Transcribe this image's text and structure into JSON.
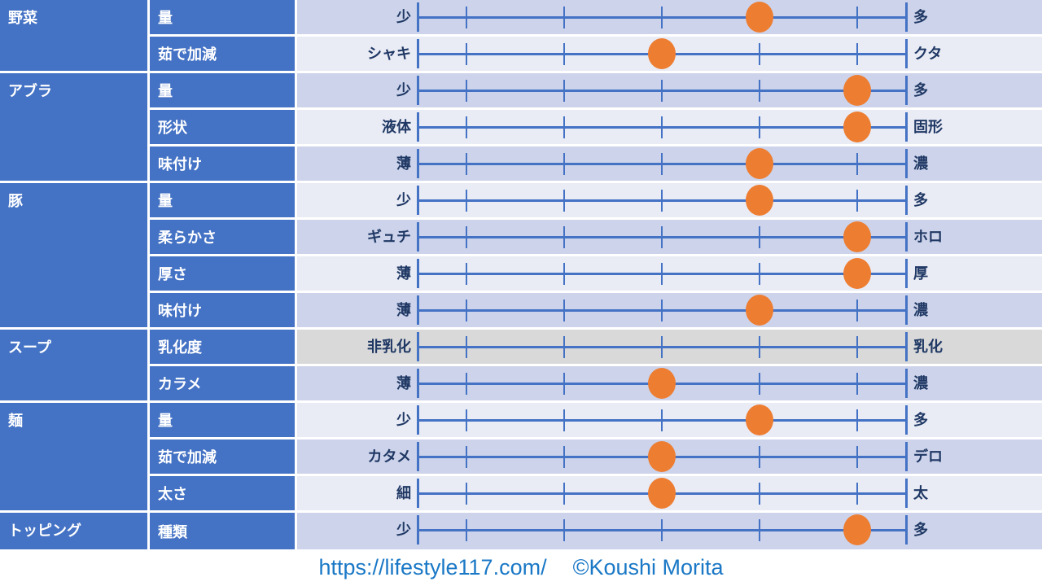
{
  "colors": {
    "header_blue": "#4472C4",
    "label_navy": "#1F3864",
    "row_dark": "#CCD3EA",
    "row_light": "#E9EBF5",
    "row_gray": "#D9D9D9",
    "dot_orange": "#ED7D31",
    "footer_blue": "#1A78C6",
    "separator": "#FFFFFF"
  },
  "footer": {
    "url": "https://lifestyle117.com/",
    "credit": "©Koushi Morita"
  },
  "chart_data": {
    "type": "table",
    "description": "Ramen customization rating chart: each attribute is scored on a 5-tick slider between two extremes; orange dot marks the rating. The 乳化度 row has no dot.",
    "scale_positions": 5,
    "legend_position": "none",
    "grid": "ticks-on-line",
    "groups": [
      {
        "category": "野菜",
        "rows": [
          {
            "attribute": "量",
            "left_label": "少",
            "right_label": "多",
            "value": 4
          },
          {
            "attribute": "茹で加減",
            "left_label": "シャキ",
            "right_label": "クタ",
            "value": 3
          }
        ]
      },
      {
        "category": "アブラ",
        "rows": [
          {
            "attribute": "量",
            "left_label": "少",
            "right_label": "多",
            "value": 5
          },
          {
            "attribute": "形状",
            "left_label": "液体",
            "right_label": "固形",
            "value": 5
          },
          {
            "attribute": "味付け",
            "left_label": "薄",
            "right_label": "濃",
            "value": 4
          }
        ]
      },
      {
        "category": "豚",
        "rows": [
          {
            "attribute": "量",
            "left_label": "少",
            "right_label": "多",
            "value": 4
          },
          {
            "attribute": "柔らかさ",
            "left_label": "ギュチ",
            "right_label": "ホロ",
            "value": 5
          },
          {
            "attribute": "厚さ",
            "left_label": "薄",
            "right_label": "厚",
            "value": 5
          },
          {
            "attribute": "味付け",
            "left_label": "薄",
            "right_label": "濃",
            "value": 4
          }
        ]
      },
      {
        "category": "スープ",
        "rows": [
          {
            "attribute": "乳化度",
            "left_label": "非乳化",
            "right_label": "乳化",
            "value": null,
            "gray": true
          },
          {
            "attribute": "カラメ",
            "left_label": "薄",
            "right_label": "濃",
            "value": 3
          }
        ]
      },
      {
        "category": "麺",
        "rows": [
          {
            "attribute": "量",
            "left_label": "少",
            "right_label": "多",
            "value": 4
          },
          {
            "attribute": "茹で加減",
            "left_label": "カタメ",
            "right_label": "デロ",
            "value": 3
          },
          {
            "attribute": "太さ",
            "left_label": "細",
            "right_label": "太",
            "value": 3
          }
        ]
      },
      {
        "category": "トッピング",
        "rows": [
          {
            "attribute": "種類",
            "left_label": "少",
            "right_label": "多",
            "value": 5
          }
        ]
      }
    ]
  }
}
